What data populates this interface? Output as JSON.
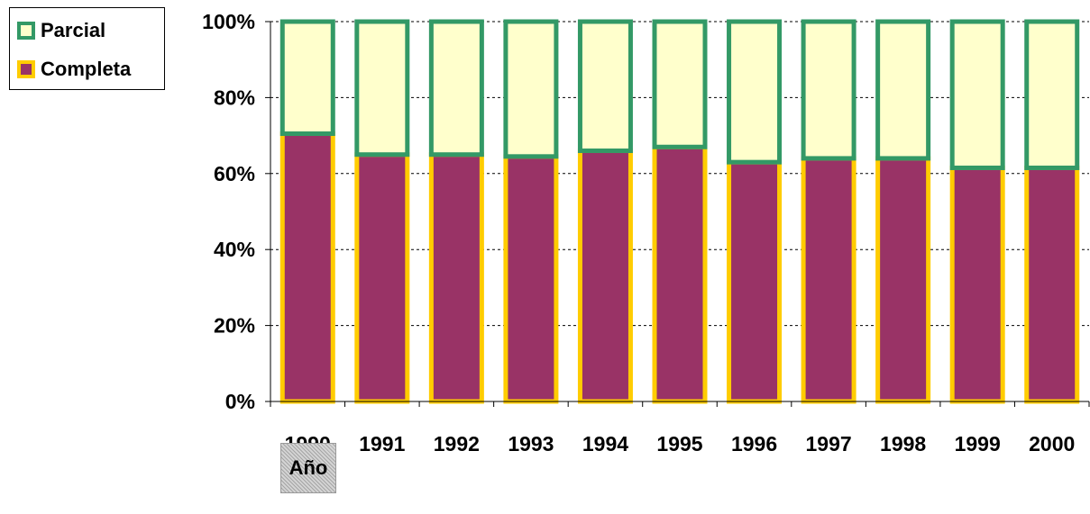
{
  "chart_data": {
    "type": "bar",
    "stacked": true,
    "normalized": true,
    "categories": [
      "1990",
      "1991",
      "1992",
      "1993",
      "1994",
      "1995",
      "1996",
      "1997",
      "1998",
      "1999",
      "2000"
    ],
    "series": [
      {
        "name": "Completa",
        "values": [
          70.5,
          65,
          65,
          64.5,
          66,
          67,
          63,
          64,
          64,
          61.5,
          61.5
        ],
        "fill": "#993366",
        "stroke": "#ffcc00"
      },
      {
        "name": "Parcial",
        "values": [
          29.5,
          35,
          35,
          35.5,
          34,
          33,
          37,
          36,
          36,
          38.5,
          38.5
        ],
        "fill": "#ffffcc",
        "stroke": "#339966"
      }
    ],
    "ylim": [
      0,
      100
    ],
    "yticks": [
      "0%",
      "20%",
      "40%",
      "60%",
      "80%",
      "100%"
    ],
    "xlabel": "Año",
    "ylabel": "",
    "title": "",
    "grid": "horizontal dashed",
    "legend": {
      "position": "top-left",
      "entries": [
        "Parcial",
        "Completa"
      ]
    }
  }
}
